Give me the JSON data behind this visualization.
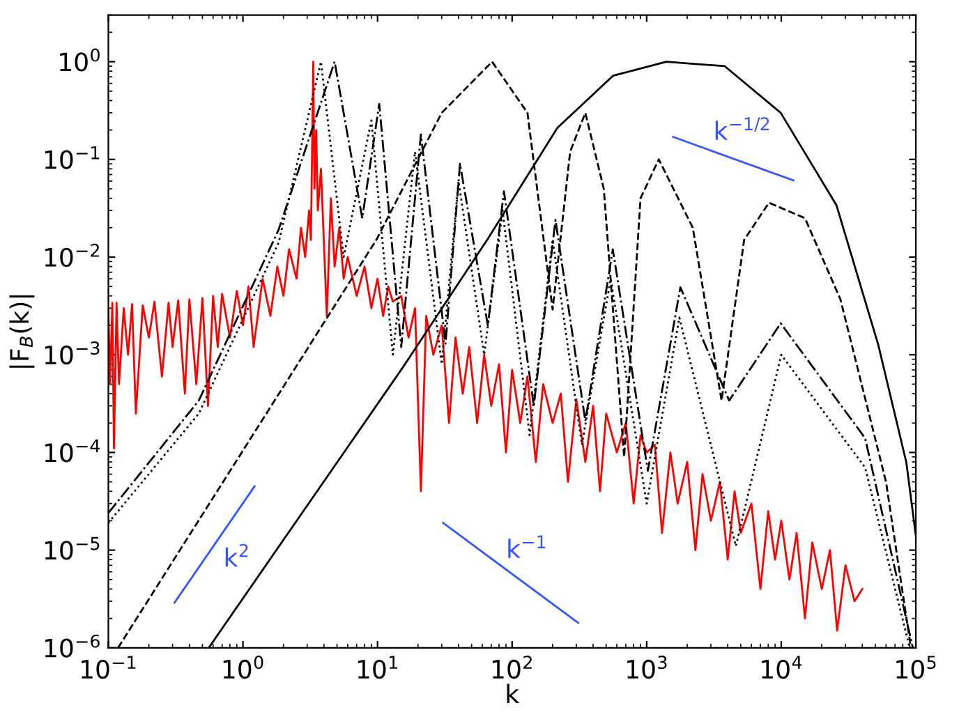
{
  "chart_data": {
    "type": "line",
    "xlabel": "k",
    "ylabel": "|F$_{B}$(k)|",
    "log": "xy",
    "grid": false,
    "legend": false,
    "xlim": [
      0.1,
      100000
    ],
    "ylim": [
      1e-06,
      3
    ],
    "xticks": [
      {
        "value": 0.1,
        "label": "10$^{−1}$"
      },
      {
        "value": 1,
        "label": "10$^{0}$"
      },
      {
        "value": 10,
        "label": "10$^{1}$"
      },
      {
        "value": 100,
        "label": "10$^{2}$"
      },
      {
        "value": 1000,
        "label": "10$^{3}$"
      },
      {
        "value": 10000,
        "label": "10$^{4}$"
      },
      {
        "value": 100000,
        "label": "10$^{5}$"
      }
    ],
    "yticks": [
      {
        "value": 1e-06,
        "label": "10$^{−6}$"
      },
      {
        "value": 1e-05,
        "label": "10$^{−5}$"
      },
      {
        "value": 0.0001,
        "label": "10$^{−4}$"
      },
      {
        "value": 0.001,
        "label": "10$^{−3}$"
      },
      {
        "value": 0.01,
        "label": "10$^{−2}$"
      },
      {
        "value": 0.1,
        "label": "10$^{−1}$"
      },
      {
        "value": 1,
        "label": "10$^{0}$"
      }
    ],
    "series": [
      {
        "color": "#ff0000",
        "line_style": "solid",
        "x": [
          0.1,
          0.103,
          0.107,
          0.11,
          0.115,
          0.12,
          0.13,
          0.14,
          0.15,
          0.16,
          0.18,
          0.2,
          0.22,
          0.25,
          0.28,
          0.3,
          0.33,
          0.37,
          0.4,
          0.45,
          0.5,
          0.55,
          0.6,
          0.65,
          0.7,
          0.8,
          0.9,
          1.0,
          1.1,
          1.2,
          1.4,
          1.6,
          1.8,
          2.0,
          2.2,
          2.5,
          2.7,
          2.9,
          3.1,
          3.2,
          3.33,
          3.4,
          3.5,
          3.6,
          3.8,
          4.2,
          4.5,
          4.8,
          5.2,
          5.6,
          6,
          7,
          8,
          9,
          10,
          11,
          12,
          13,
          15,
          17,
          19,
          21,
          23,
          26,
          30,
          34,
          38,
          43,
          48,
          55,
          62,
          70,
          80,
          90,
          100,
          115,
          130,
          150,
          170,
          200,
          230,
          260,
          300,
          350,
          400,
          450,
          500,
          600,
          700,
          800,
          900,
          1000,
          1150,
          1300,
          1500,
          1700,
          2000,
          2300,
          2600,
          3000,
          3500,
          4000,
          4500,
          5000,
          6000,
          7000,
          8000,
          9000,
          10000,
          11500,
          13000,
          15000,
          17000,
          20000,
          23000,
          26000,
          30000,
          35000,
          40000
        ],
        "values": [
          0.003,
          0.0005,
          0.0034,
          0.00011,
          0.0034,
          0.0005,
          0.003,
          0.001,
          0.0033,
          0.00025,
          0.0032,
          0.0015,
          0.0035,
          0.0006,
          0.0034,
          0.0012,
          0.0036,
          0.0004,
          0.0037,
          0.0005,
          0.0038,
          0.0003,
          0.004,
          0.0012,
          0.0042,
          0.0015,
          0.0045,
          0.002,
          0.005,
          0.0012,
          0.006,
          0.0025,
          0.008,
          0.004,
          0.012,
          0.006,
          0.02,
          0.01,
          0.03,
          0.015,
          1.0,
          0.05,
          0.2,
          0.03,
          0.08,
          0.0025,
          0.04,
          0.008,
          0.02,
          0.006,
          0.01,
          0.004,
          0.008,
          0.003,
          0.006,
          0.0025,
          0.005,
          0.0035,
          0.004,
          0.0015,
          0.003,
          4e-05,
          0.0025,
          0.001,
          0.002,
          0.0002,
          0.0015,
          0.0004,
          0.0012,
          0.0002,
          0.001,
          0.0003,
          0.0008,
          0.0001,
          0.0007,
          0.0002,
          0.0006,
          8e-05,
          0.0005,
          0.0002,
          0.0004,
          5e-05,
          0.00035,
          8e-05,
          0.0003,
          4e-05,
          0.00025,
          0.0001,
          0.0002,
          3e-05,
          0.00015,
          0.0001,
          0.00012,
          1.5e-05,
          0.0001,
          3e-05,
          8e-05,
          1e-05,
          6e-05,
          2e-05,
          5e-05,
          8e-06,
          4e-05,
          1.5e-05,
          3e-05,
          4e-06,
          2.5e-05,
          8e-06,
          2e-05,
          5e-06,
          1.5e-05,
          2e-06,
          1.2e-05,
          4e-06,
          1e-05,
          1.5e-06,
          7e-06,
          3e-06,
          4e-06
        ]
      },
      {
        "color": "#000000",
        "line_style": "solid",
        "x": [
          0.557,
          15.7,
          65.9,
          217,
          564,
          1400,
          3800,
          9900,
          25700,
          52600,
          85000,
          100000
        ],
        "values": [
          1e-06,
          0.00077,
          0.0153,
          0.21,
          0.72,
          1.0,
          0.9,
          0.3,
          0.034,
          0.00126,
          7.9e-05,
          1.4e-05
        ]
      },
      {
        "color": "#000000",
        "line_style": "dashed",
        "x": [
          0.118,
          9.8,
          30,
          71,
          130,
          200,
          270,
          350,
          480,
          680,
          900,
          1230,
          2200,
          3600,
          5300,
          8100,
          15000,
          27500,
          60000,
          91000
        ],
        "values": [
          1e-06,
          0.015,
          0.3,
          1.0,
          0.3,
          0.0029,
          0.12,
          0.3,
          0.05,
          9e-05,
          0.04,
          0.1,
          0.02,
          0.00034,
          0.015,
          0.036,
          0.025,
          0.0037,
          5e-05,
          1.1e-06
        ]
      },
      {
        "color": "#000000",
        "line_style": "dashdot",
        "x": [
          0.1,
          0.47,
          1.84,
          4.8,
          7.7,
          10.3,
          15,
          21,
          32,
          41,
          66,
          87,
          145,
          210,
          350,
          560,
          1020,
          1780,
          4100,
          9900,
          42000,
          95000
        ],
        "values": [
          2.4e-05,
          0.00034,
          0.019,
          1.0,
          0.025,
          0.37,
          0.0012,
          0.18,
          0.0013,
          0.09,
          0.002,
          0.047,
          0.0003,
          0.024,
          0.00021,
          0.012,
          6.5e-05,
          0.0049,
          0.00034,
          0.0021,
          0.00014,
          1e-06
        ]
      },
      {
        "color": "#000000",
        "line_style": "dotted",
        "x": [
          0.1,
          0.47,
          1.84,
          3.8,
          5.6,
          9,
          13,
          19,
          30,
          40,
          62,
          85,
          135,
          200,
          330,
          540,
          1000,
          1750,
          4600,
          10000,
          42000,
          90000
        ],
        "values": [
          1.9e-05,
          0.00025,
          0.014,
          1.0,
          0.01,
          0.25,
          0.001,
          0.12,
          0.0008,
          0.06,
          0.001,
          0.03,
          0.00015,
          0.015,
          0.00012,
          0.006,
          3e-05,
          0.0024,
          1.1e-05,
          0.001,
          7e-05,
          1e-06
        ]
      },
      {
        "name": "k$^{2}$",
        "color": "#3355ff",
        "line_style": "solid",
        "x": [
          0.31,
          1.22
        ],
        "values": [
          2.9e-06,
          4.5e-05
        ]
      },
      {
        "name": "k$^{−1}$",
        "color": "#3355ff",
        "line_style": "solid",
        "x": [
          30.7,
          310
        ],
        "values": [
          1.9e-05,
          1.8e-06
        ]
      },
      {
        "name": "k$^{−1/2}$",
        "color": "#3355ff",
        "line_style": "solid",
        "x": [
          1570,
          12300
        ],
        "values": [
          0.17,
          0.061
        ]
      }
    ]
  }
}
